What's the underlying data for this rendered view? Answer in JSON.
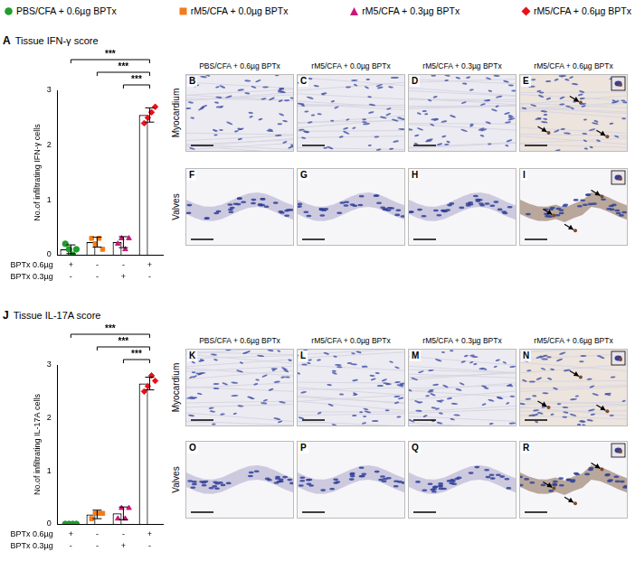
{
  "groups": [
    {
      "name": "PBS/CFA + 0.6µg BPTx",
      "color": "#1f9e2e",
      "marker": "circle"
    },
    {
      "name": "rM5/CFA + 0.0µg BPTx",
      "color": "#f07d1a",
      "marker": "square"
    },
    {
      "name": "rM5/CFA + 0.3µg BPTx",
      "color": "#c8197a",
      "marker": "triangle"
    },
    {
      "name": "rM5/CFA + 0.6µg BPTx",
      "color": "#e8101a",
      "marker": "diamond"
    }
  ],
  "chart_data": [
    {
      "type": "bar",
      "panel": "A",
      "title": "Tissue IFN-γ score",
      "y_label": "No.of infiltrating IFN-γ cells",
      "categories": [
        null,
        null,
        null,
        null
      ],
      "values": [
        0.1,
        0.23,
        0.23,
        2.55
      ],
      "errors": [
        0.08,
        0.09,
        0.1,
        0.13
      ],
      "points": [
        [
          0.2,
          0.1,
          0.0,
          0.1
        ],
        [
          0.3,
          0.2,
          0.3,
          0.1
        ],
        [
          0.2,
          0.3,
          0.1,
          0.3
        ],
        [
          2.4,
          2.5,
          2.6,
          2.7
        ]
      ],
      "ylim": [
        0,
        3
      ],
      "yticks": [
        0,
        1,
        2,
        3
      ],
      "grid": false,
      "significance": [
        {
          "from": 2,
          "to": 3,
          "label": "***"
        },
        {
          "from": 1,
          "to": 3,
          "label": "***"
        },
        {
          "from": 0,
          "to": 3,
          "label": "***"
        }
      ],
      "x_table": [
        {
          "label": "BPTx 0.6µg",
          "marks": [
            "+",
            "-",
            "-",
            "+"
          ]
        },
        {
          "label": "BPTx 0.3µg",
          "marks": [
            "-",
            "-",
            "+",
            "-"
          ]
        }
      ]
    },
    {
      "type": "bar",
      "panel": "J",
      "title": "Tissue IL-17A score",
      "y_label": "No.of infiltrating IL-17A cells",
      "categories": [
        null,
        null,
        null,
        null
      ],
      "values": [
        0.0,
        0.18,
        0.2,
        2.65
      ],
      "errors": [
        0.0,
        0.08,
        0.12,
        0.12
      ],
      "points": [
        [
          0.0,
          0.0,
          0.0,
          0.0
        ],
        [
          0.1,
          0.2,
          0.2,
          0.2
        ],
        [
          0.1,
          0.3,
          0.1,
          0.3
        ],
        [
          2.5,
          2.6,
          2.8,
          2.7
        ]
      ],
      "ylim": [
        0,
        3
      ],
      "yticks": [
        0,
        1,
        2,
        3
      ],
      "grid": false,
      "significance": [
        {
          "from": 2,
          "to": 3,
          "label": "***"
        },
        {
          "from": 1,
          "to": 3,
          "label": "***"
        },
        {
          "from": 0,
          "to": 3,
          "label": "***"
        }
      ],
      "x_table": [
        {
          "label": "BPTx 0.6µg",
          "marks": [
            "+",
            "-",
            "-",
            "+"
          ]
        },
        {
          "label": "BPTx 0.3µg",
          "marks": [
            "-",
            "-",
            "+",
            "-"
          ]
        }
      ]
    }
  ],
  "micrographs": [
    {
      "rows": [
        "Myocardium",
        "Valves"
      ],
      "panels": [
        [
          "B",
          "C",
          "D",
          "E"
        ],
        [
          "F",
          "G",
          "H",
          "I"
        ]
      ]
    },
    {
      "rows": [
        "Myocardium",
        "Valves"
      ],
      "panels": [
        [
          "K",
          "L",
          "M",
          "N"
        ],
        [
          "O",
          "P",
          "Q",
          "R"
        ]
      ]
    }
  ]
}
